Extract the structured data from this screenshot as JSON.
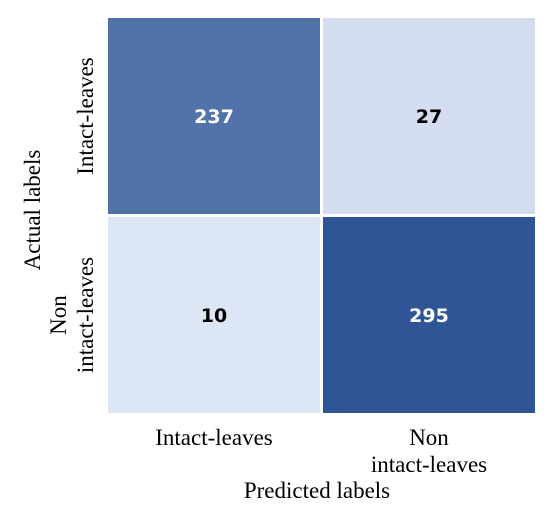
{
  "chart_data": {
    "type": "heatmap",
    "title": "",
    "xlabel": "Predicted labels",
    "ylabel": "Actual labels",
    "x_categories": [
      [
        "Intact-leaves"
      ],
      [
        "Non",
        "intact-leaves"
      ]
    ],
    "y_categories": [
      [
        "Intact-leaves"
      ],
      [
        "Non",
        "intact-leaves"
      ]
    ],
    "values": [
      [
        237,
        27
      ],
      [
        10,
        295
      ]
    ],
    "colorscale": {
      "low": "#dde6f5",
      "high": "#2f5597"
    },
    "text_color_dark_cells": "#ffffff",
    "text_color_light_cells": "#000000",
    "grid_line_color": "#ffffff"
  }
}
